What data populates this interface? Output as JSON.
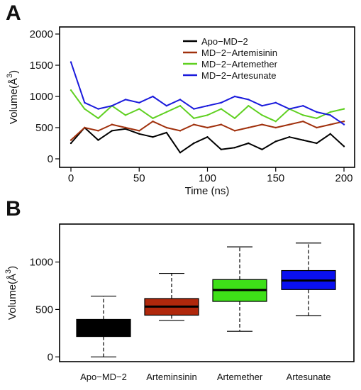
{
  "panels": {
    "a": "A",
    "b": "B"
  },
  "chart_data": [
    {
      "type": "line",
      "panel": "A",
      "xlabel": "Time (ns)",
      "ylabel_main": "Volume(",
      "ylabel_unit": "Å",
      "ylabel_exp": "3",
      "ylabel_close": ")",
      "xlim": [
        0,
        200
      ],
      "ylim": [
        0,
        2000
      ],
      "xticks": [
        0,
        50,
        100,
        150,
        200
      ],
      "yticks": [
        0,
        500,
        1000,
        1500,
        2000
      ],
      "legend_position": "top-right",
      "x": [
        0,
        10,
        20,
        30,
        40,
        50,
        60,
        70,
        80,
        90,
        100,
        110,
        120,
        130,
        140,
        150,
        160,
        170,
        180,
        190,
        200
      ],
      "series": [
        {
          "name": "Apo−MD−2",
          "color": "#000000",
          "values": [
            250,
            500,
            300,
            450,
            480,
            400,
            350,
            420,
            100,
            250,
            350,
            150,
            180,
            250,
            150,
            280,
            350,
            300,
            250,
            400,
            200
          ]
        },
        {
          "name": "MD−2−Artemisinin",
          "color": "#a0300c",
          "values": [
            300,
            500,
            450,
            550,
            500,
            450,
            600,
            500,
            450,
            550,
            500,
            550,
            450,
            500,
            550,
            500,
            550,
            600,
            500,
            550,
            600
          ]
        },
        {
          "name": "MD−2−Artemether",
          "color": "#5fd020",
          "values": [
            1100,
            800,
            650,
            850,
            700,
            800,
            650,
            750,
            850,
            650,
            700,
            800,
            650,
            850,
            700,
            600,
            800,
            700,
            650,
            750,
            800
          ]
        },
        {
          "name": "MD−2−Artesunate",
          "color": "#1a1adc",
          "values": [
            1550,
            900,
            800,
            850,
            950,
            900,
            1000,
            850,
            950,
            800,
            850,
            900,
            1000,
            950,
            850,
            900,
            800,
            850,
            750,
            700,
            550
          ]
        }
      ]
    },
    {
      "type": "box",
      "panel": "B",
      "ylabel_main": "Volume(",
      "ylabel_unit": "Å",
      "ylabel_exp": "3",
      "ylabel_close": ")",
      "ylim": [
        -50,
        1400
      ],
      "yticks": [
        0,
        500,
        1000
      ],
      "categories": [
        "Apo−MD−2",
        "Arteminsinin",
        "Artemether",
        "Artesunate"
      ],
      "boxes": [
        {
          "min": 0,
          "q1": 215,
          "median": 300,
          "q3": 395,
          "max": 640,
          "color": "#000000"
        },
        {
          "min": 385,
          "q1": 440,
          "median": 530,
          "q3": 615,
          "max": 880,
          "color": "#b0280c"
        },
        {
          "min": 270,
          "q1": 585,
          "median": 705,
          "q3": 815,
          "max": 1160,
          "color": "#3ee018"
        },
        {
          "min": 435,
          "q1": 710,
          "median": 805,
          "q3": 910,
          "max": 1200,
          "color": "#0a10f0"
        }
      ]
    }
  ]
}
